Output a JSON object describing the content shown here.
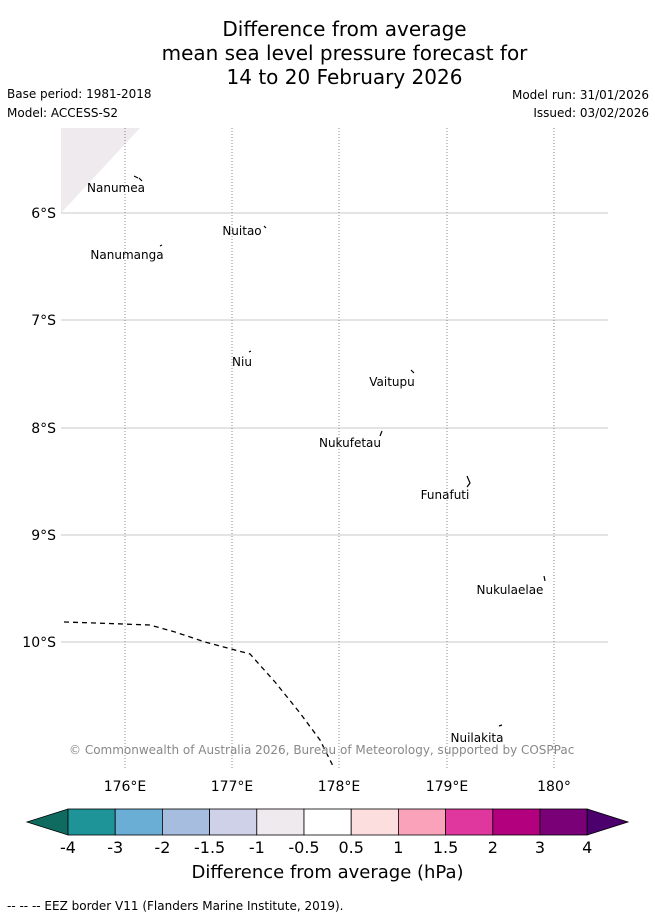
{
  "title": {
    "line1": "Difference from average",
    "line2": "mean sea level pressure forecast for",
    "line3": "14 to 20 February 2026"
  },
  "meta": {
    "base_period": "Base period: 1981-2018",
    "model": "Model: ACCESS-S2",
    "model_run": "Model run: 31/01/2026",
    "issued": "Issued: 03/02/2026"
  },
  "map": {
    "lat_labels": [
      "6°S",
      "7°S",
      "8°S",
      "9°S",
      "10°S"
    ],
    "lon_labels": [
      "176°E",
      "177°E",
      "178°E",
      "179°E",
      "180°"
    ],
    "places": {
      "nanumea": "Nanumea",
      "nuitao": "Nuitao",
      "nanumanga": "Nanumanga",
      "niu": "Niu",
      "vaitupu": "Vaitupu",
      "nukufetau": "Nukufetau",
      "funafuti": "Funafuti",
      "nukulaelae": "Nukulaelae",
      "nuilakita": "Nuilakita"
    },
    "copyright": "© Commonwealth of Australia 2026, Bureau of Meteorology, supported by COSPPac",
    "anomaly_fill_color": "#efeaee"
  },
  "colorbar": {
    "colors": [
      "#0f6b60",
      "#1e9499",
      "#6aaed6",
      "#a7bddf",
      "#cfd1e8",
      "#efeaee",
      "#ffffff",
      "#fddedf",
      "#f9a2ba",
      "#e0379f",
      "#b3007f",
      "#7a0077",
      "#4b006e"
    ],
    "ticks": [
      "-4",
      "-3",
      "-2",
      "-1.5",
      "-1",
      "-0.5",
      "0.5",
      "1",
      "1.5",
      "2",
      "3",
      "4"
    ],
    "label": "Difference from average (hPa)"
  },
  "footnote": "--  --  -- EEZ border V11 (Flanders Marine Institute, 2019)."
}
